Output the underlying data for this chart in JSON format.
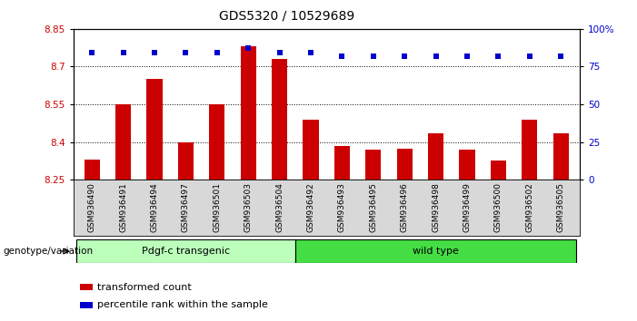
{
  "title": "GDS5320 / 10529689",
  "categories": [
    "GSM936490",
    "GSM936491",
    "GSM936494",
    "GSM936497",
    "GSM936501",
    "GSM936503",
    "GSM936504",
    "GSM936492",
    "GSM936493",
    "GSM936495",
    "GSM936496",
    "GSM936498",
    "GSM936499",
    "GSM936500",
    "GSM936502",
    "GSM936505"
  ],
  "bar_values": [
    8.33,
    8.55,
    8.65,
    8.4,
    8.55,
    8.78,
    8.73,
    8.49,
    8.385,
    8.37,
    8.375,
    8.435,
    8.37,
    8.325,
    8.49,
    8.435
  ],
  "percentile_values": [
    84,
    84,
    84,
    84,
    84,
    87,
    84,
    84,
    82,
    82,
    82,
    82,
    82,
    82,
    82,
    82
  ],
  "bar_color": "#cc0000",
  "percentile_color": "#0000cc",
  "ylim_left": [
    8.25,
    8.85
  ],
  "ylim_right": [
    0,
    100
  ],
  "yticks_left": [
    8.25,
    8.4,
    8.55,
    8.7,
    8.85
  ],
  "yticks_right": [
    0,
    25,
    50,
    75,
    100
  ],
  "ytick_labels_right": [
    "0",
    "25",
    "50",
    "75",
    "100%"
  ],
  "gridlines": [
    8.4,
    8.55,
    8.7
  ],
  "group1_label": "Pdgf-c transgenic",
  "group2_label": "wild type",
  "group1_count": 7,
  "group2_count": 9,
  "group_label": "genotype/variation",
  "legend_bar": "transformed count",
  "legend_pct": "percentile rank within the sample",
  "bar_color_hex": "#cc0000",
  "percentile_color_hex": "#0000cc",
  "group1_color": "#bbffbb",
  "group2_color": "#44dd44",
  "xticklabel_bg": "#d8d8d8"
}
